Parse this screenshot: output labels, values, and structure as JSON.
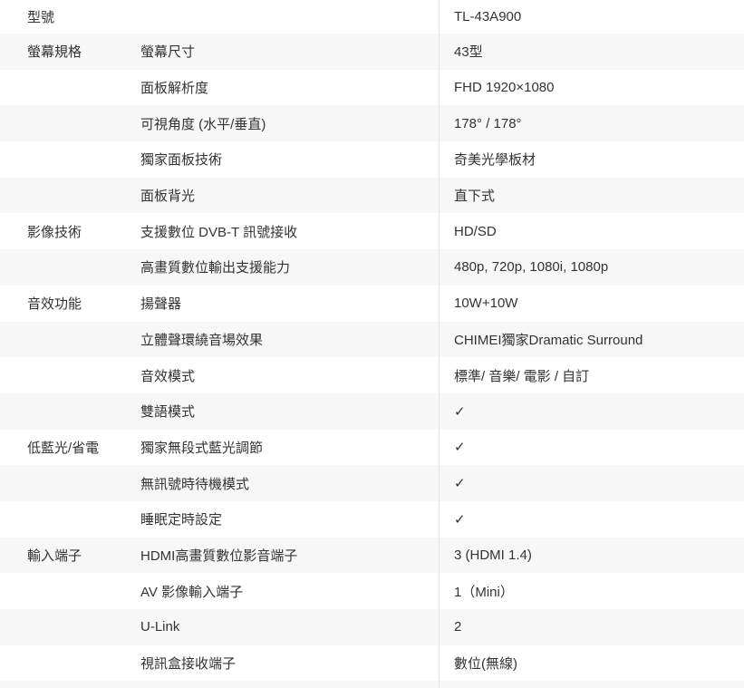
{
  "colors": {
    "row_bg": "#ffffff",
    "row_alt_bg": "#f7f7f7",
    "divider": "#e4e4e4",
    "text": "#333333"
  },
  "spec_table": {
    "rows": [
      {
        "category": "型號",
        "label": "",
        "value": "TL-43A900"
      },
      {
        "category": "螢幕規格",
        "label": "螢幕尺寸",
        "value": "43型"
      },
      {
        "category": "",
        "label": "面板解析度",
        "value": "FHD 1920×1080"
      },
      {
        "category": "",
        "label": "可視角度 (水平/垂直)",
        "value": "178° / 178°"
      },
      {
        "category": "",
        "label": "獨家面板技術",
        "value": "奇美光學板材"
      },
      {
        "category": "",
        "label": "面板背光",
        "value": "直下式"
      },
      {
        "category": "影像技術",
        "label": "支援數位 DVB-T 訊號接收",
        "value": "HD/SD"
      },
      {
        "category": "",
        "label": "高畫質數位輸出支援能力",
        "value": "480p, 720p, 1080i, 1080p"
      },
      {
        "category": "音效功能",
        "label": "揚聲器",
        "value": "10W+10W"
      },
      {
        "category": "",
        "label": "立體聲環繞音場效果",
        "value": "CHIMEI獨家Dramatic Surround"
      },
      {
        "category": "",
        "label": "音效模式",
        "value": "標準/ 音樂/ 電影 / 自訂"
      },
      {
        "category": "",
        "label": "雙語模式",
        "value": "✓"
      },
      {
        "category": "低藍光/省電",
        "label": "獨家無段式藍光調節",
        "value": "✓"
      },
      {
        "category": "",
        "label": "無訊號時待機模式",
        "value": "✓"
      },
      {
        "category": "",
        "label": "睡眠定時設定",
        "value": "✓"
      },
      {
        "category": "輸入端子",
        "label": "HDMI高畫質數位影音端子",
        "value": "3 (HDMI 1.4)"
      },
      {
        "category": "",
        "label": "AV 影像輸入端子",
        "value": "1（Mini）"
      },
      {
        "category": "",
        "label": "U-Link",
        "value": "2"
      },
      {
        "category": "",
        "label": "視訊盒接收端子",
        "value": "數位(無線)"
      }
    ]
  }
}
